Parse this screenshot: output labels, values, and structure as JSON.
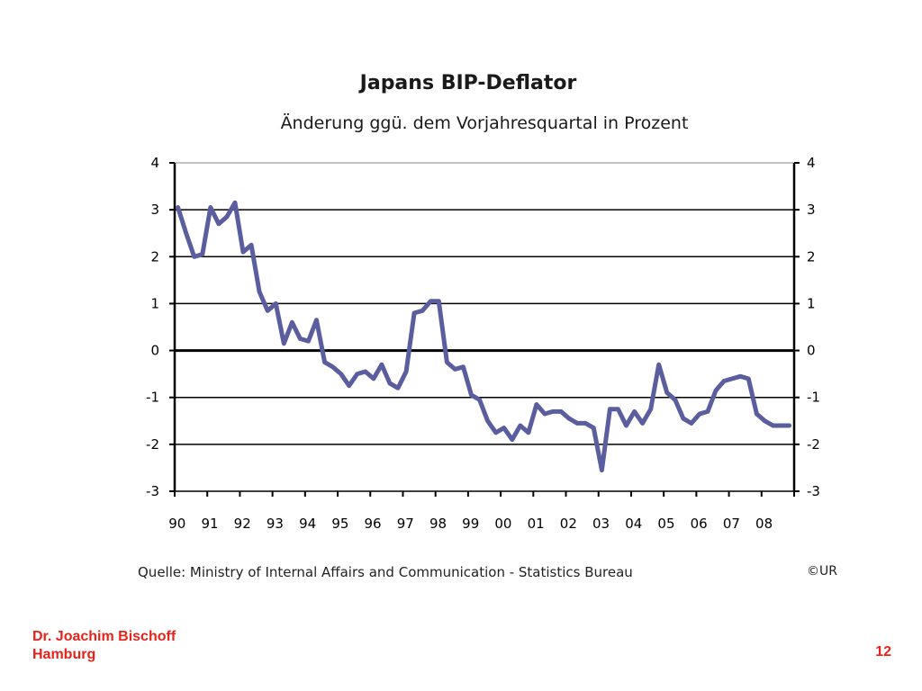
{
  "chart_data": {
    "type": "line",
    "title": "Japans BIP-Deflator",
    "subtitle": "Änderung ggü. dem Vorjahresquartal in Prozent",
    "x_tick_labels": [
      "90",
      "91",
      "92",
      "93",
      "94",
      "95",
      "96",
      "97",
      "98",
      "99",
      "00",
      "01",
      "02",
      "03",
      "04",
      "05",
      "06",
      "07",
      "08"
    ],
    "y_tick_labels": [
      "4",
      "3",
      "2",
      "1",
      "0",
      "-1",
      "-2",
      "-3"
    ],
    "y_ticks": [
      4,
      3,
      2,
      1,
      0,
      -1,
      -2,
      -3
    ],
    "ylim": [
      -3,
      4
    ],
    "xlim": [
      1990,
      2009
    ],
    "grid": true,
    "zero_line_bold": true,
    "line_color": "#5b5e9e",
    "series": [
      {
        "name": "",
        "x": [
          1990.0,
          1990.25,
          1990.5,
          1990.75,
          1991.0,
          1991.25,
          1991.5,
          1991.75,
          1992.0,
          1992.25,
          1992.5,
          1992.75,
          1993.0,
          1993.25,
          1993.5,
          1993.75,
          1994.0,
          1994.25,
          1994.5,
          1994.75,
          1995.0,
          1995.25,
          1995.5,
          1995.75,
          1996.0,
          1996.25,
          1996.5,
          1996.75,
          1997.0,
          1997.25,
          1997.5,
          1997.75,
          1998.0,
          1998.25,
          1998.5,
          1998.75,
          1999.0,
          1999.25,
          1999.5,
          1999.75,
          2000.0,
          2000.25,
          2000.5,
          2000.75,
          2001.0,
          2001.25,
          2001.5,
          2001.75,
          2002.0,
          2002.25,
          2002.5,
          2002.75,
          2003.0,
          2003.25,
          2003.5,
          2003.75,
          2004.0,
          2004.25,
          2004.5,
          2004.75,
          2005.0,
          2005.25,
          2005.5,
          2005.75,
          2006.0,
          2006.25,
          2006.5,
          2006.75,
          2007.0,
          2007.25,
          2007.5,
          2007.75,
          2008.0,
          2008.25,
          2008.5,
          2008.75
        ],
        "y": [
          3.05,
          2.5,
          2.0,
          2.05,
          3.05,
          2.7,
          2.85,
          3.15,
          2.1,
          2.25,
          1.25,
          0.85,
          1.0,
          0.15,
          0.6,
          0.25,
          0.2,
          0.65,
          -0.25,
          -0.35,
          -0.5,
          -0.75,
          -0.5,
          -0.45,
          -0.6,
          -0.3,
          -0.7,
          -0.8,
          -0.45,
          0.8,
          0.85,
          1.05,
          1.05,
          -0.25,
          -0.4,
          -0.35,
          -0.95,
          -1.05,
          -1.5,
          -1.75,
          -1.65,
          -1.9,
          -1.6,
          -1.75,
          -1.15,
          -1.35,
          -1.3,
          -1.3,
          -1.45,
          -1.55,
          -1.55,
          -1.65,
          -2.55,
          -1.25,
          -1.25,
          -1.6,
          -1.3,
          -1.55,
          -1.25,
          -0.3,
          -0.9,
          -1.05,
          -1.45,
          -1.55,
          -1.35,
          -1.3,
          -0.85,
          -0.65,
          -0.6,
          -0.55,
          -0.6,
          -1.35,
          -1.5,
          -1.6,
          -1.6,
          -1.6
        ]
      }
    ]
  },
  "source": "Quelle: Ministry of Internal Affairs and Communication - Statistics Bureau",
  "copyright": "©UR",
  "footer": {
    "author_line1": "Dr. Joachim Bischoff",
    "author_line2": "Hamburg",
    "page_number": "12"
  },
  "colors": {
    "line": "#5b5e9e",
    "footer_text": "#e8231a"
  }
}
